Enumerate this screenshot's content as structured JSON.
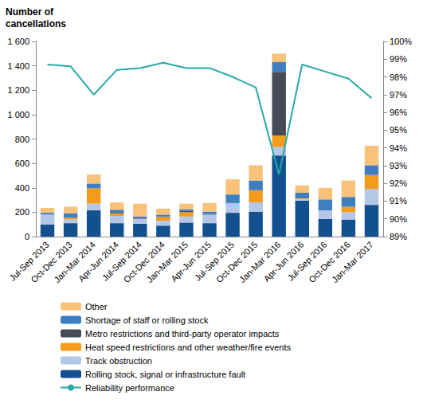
{
  "chart_data": {
    "type": "bar",
    "y_label": "Number of cancellations",
    "stacked": true,
    "grid": false,
    "legend": "bottom",
    "categories": [
      "Jul-Sep 2013",
      "Oct-Dec 2013",
      "Jan-Mar 2014",
      "Apr-Jun 2014",
      "Jul-Sep 2014",
      "Oct-Dec 2014",
      "Jan-Mar 2015",
      "Apr-Jun 2015",
      "Jul-Sep 2015",
      "Oct-Dec 2015",
      "Jan-Mar 2016",
      "Apr-Jun 2016",
      "Jul-Sep 2016",
      "Oct-Dec 2016",
      "Jan-Mar 2017"
    ],
    "ylim": [
      0,
      1600
    ],
    "yticks": [
      0,
      200,
      400,
      600,
      800,
      {
        "value": 1000,
        "label": "1 000"
      },
      {
        "value": 1200,
        "label": "1 200"
      },
      {
        "value": 1400,
        "label": "1 400"
      },
      {
        "value": 1600,
        "label": "1 600"
      }
    ],
    "y2lim": [
      89,
      100
    ],
    "y2ticks": [
      {
        "value": 89,
        "label": "89%"
      },
      {
        "value": 90,
        "label": "90%"
      },
      {
        "value": 91,
        "label": "91%"
      },
      {
        "value": 92,
        "label": "92%"
      },
      {
        "value": 93,
        "label": "93%"
      },
      {
        "value": 94,
        "label": "94%"
      },
      {
        "value": 95,
        "label": "95%"
      },
      {
        "value": 96,
        "label": "96%"
      },
      {
        "value": 97,
        "label": "97%"
      },
      {
        "value": 98,
        "label": "98%"
      },
      {
        "value": 99,
        "label": "99%"
      },
      {
        "value": 100,
        "label": "100%"
      }
    ],
    "series": [
      {
        "name": "Rolling stock, signal or infrastructure fault",
        "type": "bar",
        "color": "#12508f",
        "values": [
          100,
          110,
          215,
          110,
          105,
          90,
          115,
          110,
          195,
          205,
          665,
          295,
          145,
          140,
          260
        ]
      },
      {
        "name": "Track obstruction",
        "type": "bar",
        "color": "#b4c7e7",
        "values": [
          80,
          30,
          55,
          60,
          35,
          40,
          50,
          70,
          75,
          75,
          70,
          15,
          70,
          60,
          130
        ]
      },
      {
        "name": "Heat speed restrictions and other weather/fire events",
        "type": "bar",
        "color": "#f29b1d",
        "values": [
          0,
          15,
          125,
          20,
          5,
          30,
          35,
          0,
          5,
          100,
          95,
          5,
          0,
          45,
          115
        ]
      },
      {
        "name": "Metro restrictions and third-party operator impacts",
        "type": "bar",
        "color": "#464b57",
        "values": [
          0,
          0,
          0,
          5,
          0,
          5,
          10,
          5,
          0,
          0,
          520,
          5,
          0,
          0,
          0
        ]
      },
      {
        "name": "Shortage of staff or rolling stock",
        "type": "bar",
        "color": "#3f7fbf",
        "values": [
          15,
          35,
          40,
          25,
          20,
          15,
          15,
          20,
          70,
          80,
          80,
          40,
          90,
          80,
          80
        ]
      },
      {
        "name": "Other",
        "type": "bar",
        "color": "#f8c27a",
        "values": [
          40,
          55,
          75,
          60,
          105,
          50,
          45,
          70,
          125,
          125,
          70,
          60,
          95,
          135,
          160
        ]
      },
      {
        "name": "Reliability performance",
        "type": "line",
        "axis": "y2",
        "color": "#27a9a6",
        "line_style": "solid",
        "values": [
          98.7,
          98.6,
          97.0,
          98.4,
          98.5,
          98.8,
          98.5,
          98.5,
          98.0,
          97.4,
          92.5,
          98.7,
          98.3,
          97.9,
          96.8
        ]
      }
    ]
  }
}
